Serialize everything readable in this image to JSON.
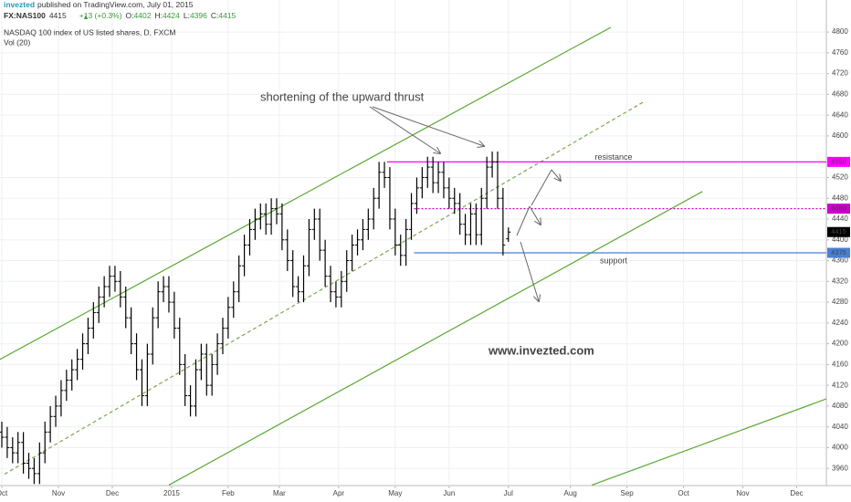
{
  "header": {
    "publisher": "invezted",
    "published": "published on TradingView.com, July 01, 2015",
    "symbol": "FX:NAS100",
    "change": "+13 (+0.3%)",
    "ohlc_labels": [
      "O:",
      "H:",
      "L:",
      "C:"
    ],
    "description": "NASDAQ 100 index of US listed shares, D, FXCM",
    "volume_label": "Vol (20)"
  },
  "chart_data": {
    "type": "ohlc",
    "grid": true,
    "color": "#000000",
    "xlim": [
      0,
      306
    ],
    "ylim": [
      3927,
      4823
    ],
    "xticks": [
      {
        "value": 0,
        "label": "Oct"
      },
      {
        "value": 21,
        "label": "Nov"
      },
      {
        "value": 41,
        "label": "Dec"
      },
      {
        "value": 63,
        "label": "2015"
      },
      {
        "value": 84,
        "label": "Feb"
      },
      {
        "value": 103,
        "label": "Mar"
      },
      {
        "value": 125,
        "label": "Apr"
      },
      {
        "value": 146,
        "label": "May"
      },
      {
        "value": 166,
        "label": "Jun"
      },
      {
        "value": 188,
        "label": "Jul"
      },
      {
        "value": 211,
        "label": "Aug"
      },
      {
        "value": 232,
        "label": "Sep"
      },
      {
        "value": 253,
        "label": "Oct"
      },
      {
        "value": 275,
        "label": "Nov"
      },
      {
        "value": 295,
        "label": "Dec"
      }
    ],
    "yticks": [
      3960,
      4000,
      4040,
      4080,
      4120,
      4160,
      4200,
      4240,
      4280,
      4320,
      4360,
      4400,
      4440,
      4480,
      4520,
      4600,
      4640,
      4680,
      4720,
      4760,
      4800
    ],
    "x": [
      0,
      2,
      4,
      6,
      8,
      10,
      12,
      14,
      16,
      18,
      20,
      22,
      24,
      26,
      28,
      30,
      32,
      34,
      36,
      38,
      40,
      42,
      44,
      46,
      48,
      50,
      52,
      54,
      56,
      58,
      60,
      62,
      64,
      66,
      68,
      70,
      72,
      74,
      76,
      78,
      80,
      82,
      84,
      86,
      88,
      90,
      92,
      94,
      96,
      98,
      100,
      102,
      104,
      106,
      108,
      110,
      112,
      114,
      116,
      118,
      120,
      122,
      124,
      126,
      128,
      130,
      132,
      134,
      136,
      138,
      140,
      142,
      144,
      146,
      148,
      150,
      152,
      154,
      156,
      158,
      160,
      162,
      164,
      166,
      168,
      170,
      172,
      174,
      176,
      178,
      180,
      182,
      184,
      186,
      188
    ],
    "open": [
      4030,
      4020,
      4000,
      3990,
      4010,
      3970,
      3960,
      3950,
      3990,
      4030,
      4060,
      4080,
      4110,
      4130,
      4150,
      4170,
      4200,
      4230,
      4260,
      4290,
      4310,
      4330,
      4320,
      4290,
      4250,
      4200,
      4150,
      4100,
      4180,
      4250,
      4300,
      4310,
      4280,
      4230,
      4160,
      4100,
      4080,
      4150,
      4180,
      4120,
      4160,
      4200,
      4230,
      4270,
      4300,
      4350,
      4390,
      4420,
      4440,
      4450,
      4430,
      4460,
      4450,
      4400,
      4360,
      4310,
      4300,
      4350,
      4420,
      4440,
      4380,
      4330,
      4300,
      4290,
      4320,
      4360,
      4390,
      4400,
      4420,
      4440,
      4480,
      4530,
      4520,
      4440,
      4390,
      4370,
      4420,
      4470,
      4500,
      4520,
      4540,
      4510,
      4530,
      4500,
      4480,
      4470,
      4430,
      4410,
      4450,
      4410,
      4480,
      4540,
      4550,
      4480,
      4402
    ],
    "high": [
      4050,
      4040,
      4020,
      4030,
      4030,
      3990,
      3980,
      4010,
      4050,
      4080,
      4100,
      4130,
      4150,
      4170,
      4190,
      4220,
      4250,
      4280,
      4310,
      4330,
      4350,
      4350,
      4340,
      4310,
      4270,
      4220,
      4170,
      4200,
      4270,
      4320,
      4330,
      4330,
      4300,
      4250,
      4180,
      4120,
      4170,
      4200,
      4200,
      4180,
      4220,
      4250,
      4290,
      4320,
      4370,
      4410,
      4440,
      4460,
      4470,
      4470,
      4480,
      4480,
      4470,
      4420,
      4380,
      4330,
      4370,
      4440,
      4460,
      4460,
      4400,
      4350,
      4320,
      4340,
      4380,
      4410,
      4420,
      4440,
      4460,
      4500,
      4550,
      4550,
      4540,
      4460,
      4410,
      4440,
      4490,
      4520,
      4540,
      4560,
      4560,
      4550,
      4550,
      4520,
      4500,
      4490,
      4450,
      4470,
      4470,
      4500,
      4560,
      4570,
      4570,
      4500,
      4424
    ],
    "low": [
      4000,
      3980,
      3970,
      3970,
      3950,
      3940,
      3930,
      3930,
      3970,
      4010,
      4040,
      4060,
      4090,
      4110,
      4130,
      4150,
      4180,
      4210,
      4240,
      4270,
      4290,
      4300,
      4270,
      4230,
      4180,
      4130,
      4080,
      4080,
      4160,
      4230,
      4280,
      4260,
      4210,
      4140,
      4080,
      4060,
      4060,
      4130,
      4100,
      4100,
      4140,
      4180,
      4210,
      4250,
      4280,
      4330,
      4370,
      4400,
      4420,
      4410,
      4410,
      4430,
      4380,
      4340,
      4290,
      4280,
      4280,
      4330,
      4400,
      4360,
      4310,
      4280,
      4270,
      4270,
      4300,
      4340,
      4370,
      4380,
      4400,
      4420,
      4460,
      4500,
      4420,
      4370,
      4350,
      4350,
      4400,
      4450,
      4480,
      4500,
      4490,
      4490,
      4480,
      4460,
      4450,
      4410,
      4390,
      4390,
      4390,
      4390,
      4460,
      4520,
      4460,
      4370,
      4396
    ],
    "close": [
      4020,
      4000,
      3990,
      4010,
      3970,
      3960,
      3950,
      3990,
      4030,
      4060,
      4080,
      4110,
      4130,
      4150,
      4170,
      4200,
      4230,
      4260,
      4290,
      4310,
      4330,
      4320,
      4290,
      4250,
      4200,
      4150,
      4100,
      4180,
      4250,
      4300,
      4310,
      4280,
      4230,
      4160,
      4100,
      4080,
      4150,
      4180,
      4120,
      4160,
      4200,
      4230,
      4270,
      4300,
      4350,
      4390,
      4420,
      4440,
      4450,
      4430,
      4460,
      4450,
      4400,
      4360,
      4310,
      4300,
      4350,
      4420,
      4440,
      4380,
      4330,
      4300,
      4290,
      4320,
      4360,
      4390,
      4400,
      4420,
      4440,
      4480,
      4530,
      4520,
      4440,
      4390,
      4370,
      4420,
      4470,
      4500,
      4520,
      4540,
      4510,
      4530,
      4500,
      4480,
      4470,
      4430,
      4410,
      4450,
      4410,
      4480,
      4540,
      4550,
      4480,
      4390,
      4415
    ],
    "trendlines": [
      {
        "color": "#5aa832",
        "style": "solid",
        "x": [
          -1,
          226
        ],
        "y": [
          4169,
          4809
        ]
      },
      {
        "color": "#5aa832",
        "style": "solid",
        "x": [
          62,
          260
        ],
        "y": [
          3928,
          4493
        ]
      },
      {
        "color": "#7aa84a",
        "style": "dashed",
        "x": [
          1,
          238
        ],
        "y": [
          3949,
          4665
        ]
      },
      {
        "color": "#5aa832",
        "style": "solid",
        "x": [
          219,
          315
        ],
        "y": [
          3928,
          4111
        ]
      }
    ],
    "levels": [
      {
        "value": 4550,
        "from": 143,
        "color": "#ff00ff",
        "style": "solid",
        "label": "resistance"
      },
      {
        "value": 4460,
        "from": 153,
        "color": "#cc00cc",
        "style": "dotted"
      },
      {
        "value": 4375,
        "from": 153,
        "color": "#4a7fd4",
        "style": "solid",
        "label": "support"
      }
    ],
    "annotations": {
      "thrust": "shortening of the upward thrust",
      "watermark": "www.invezted.com"
    }
  }
}
